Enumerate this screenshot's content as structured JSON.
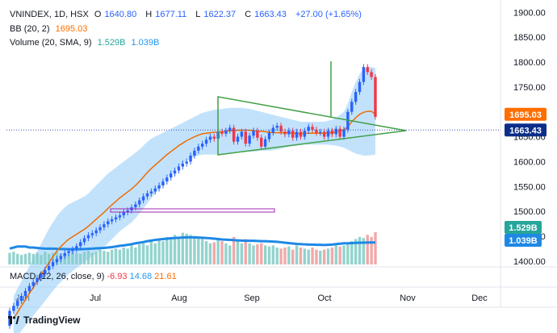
{
  "legend": {
    "symbol": "VNINDEX, 1D, HSX",
    "o_label": "O",
    "o": "1640.80",
    "h_label": "H",
    "h": "1677.11",
    "l_label": "L",
    "l": "1622.37",
    "c_label": "C",
    "c": "1663.43",
    "change": "+27.00 (+1.65%)",
    "bb_label": "BB (20, 2)",
    "bb_value": "1695.03",
    "vol_label": "Volume (20, SMA, 9)",
    "vol_value": "1.529B",
    "vol_sma": "1.039B"
  },
  "macd": {
    "label": "MACD (12, 26, close, 9)",
    "v1": "-6.93",
    "v2": "14.68",
    "v3": "21.61"
  },
  "brand": "TradingView",
  "colors": {
    "up": "#2962ff",
    "down": "#f23645",
    "bb_band": "#90caf9",
    "bb_mid": "#ef6c00",
    "triangle": "#43a047",
    "vol_up": "#80cbc4",
    "vol_down": "#ef9a9a",
    "vol_sma": "#1e88e5"
  },
  "chart_data": {
    "type": "candlestick",
    "x_labels": [
      "Jun",
      "Jul",
      "Aug",
      "Sep",
      "Oct",
      "Nov",
      "Dec"
    ],
    "y_ticks": [
      1900,
      1850,
      1800,
      1750,
      1700,
      1650,
      1600,
      1550,
      1500,
      1450,
      1400
    ],
    "y_tick_labels": [
      "1900.00",
      "1850.00",
      "1800.00",
      "1750.00",
      "1700.00",
      "1650.00",
      "1600.00",
      "1550.00",
      "1500.00",
      "1450.00",
      "1400.00"
    ],
    "ylim": [
      1390,
      1915
    ],
    "price_tags": [
      {
        "label": "1695.03",
        "value": 1695.03,
        "color": "#ff6d00"
      },
      {
        "label": "1663.43",
        "value": 1663.43,
        "color": "#0b2e8a"
      }
    ],
    "volume_tags": [
      {
        "label": "1.529B",
        "color": "#26a69a"
      },
      {
        "label": "1.039B",
        "color": "#1e88e5"
      }
    ],
    "volume_sma_ylim": [
      0,
      1.6
    ],
    "bars_count": 110,
    "start_close": 1270,
    "closes": [
      1300,
      1310,
      1320,
      1330,
      1340,
      1350,
      1358,
      1366,
      1374,
      1382,
      1390,
      1398,
      1404,
      1410,
      1416,
      1420,
      1424,
      1430,
      1438,
      1446,
      1452,
      1456,
      1462,
      1468,
      1474,
      1480,
      1484,
      1488,
      1492,
      1498,
      1502,
      1508,
      1514,
      1522,
      1530,
      1536,
      1540,
      1546,
      1552,
      1560,
      1568,
      1576,
      1582,
      1590,
      1596,
      1600,
      1612,
      1622,
      1630,
      1636,
      1644,
      1650,
      1646,
      1660,
      1656,
      1662,
      1668,
      1640,
      1650,
      1660,
      1636,
      1652,
      1662,
      1648,
      1630,
      1645,
      1658,
      1668,
      1672,
      1660,
      1655,
      1662,
      1648,
      1660,
      1650,
      1662,
      1670,
      1664,
      1658,
      1660,
      1650,
      1662,
      1655,
      1666,
      1650,
      1664,
      1700,
      1720,
      1740,
      1760,
      1790,
      1780,
      1770,
      1690,
      1663.43,
      1663.43,
      1663.43,
      1663.43,
      1663.43,
      1663.43,
      1663.43,
      1663.43,
      1663.43,
      1663.43,
      1663.43,
      1663.43,
      1663.43,
      1663.43,
      1663.43,
      1663.43
    ],
    "bb_upper": [
      1330,
      1345,
      1360,
      1375,
      1390,
      1405,
      1420,
      1435,
      1450,
      1465,
      1478,
      1490,
      1500,
      1508,
      1514,
      1518,
      1522,
      1526,
      1530,
      1536,
      1544,
      1552,
      1560,
      1568,
      1576,
      1582,
      1588,
      1594,
      1600,
      1606,
      1612,
      1618,
      1624,
      1632,
      1640,
      1646,
      1650,
      1654,
      1658,
      1662,
      1666,
      1670,
      1674,
      1678,
      1682,
      1686,
      1690,
      1694,
      1698,
      1700,
      1702,
      1704,
      1705,
      1706,
      1707,
      1708,
      1708,
      1708,
      1708,
      1707,
      1706,
      1704,
      1702,
      1700,
      1698,
      1696,
      1694,
      1692,
      1690,
      1688,
      1686,
      1684,
      1682,
      1680,
      1680,
      1680,
      1680,
      1680,
      1680,
      1680,
      1682,
      1684,
      1688,
      1694,
      1700,
      1716,
      1740,
      1760,
      1776,
      1786,
      1790,
      1790,
      1788
    ],
    "bb_lower": [
      1240,
      1250,
      1260,
      1270,
      1280,
      1290,
      1300,
      1310,
      1320,
      1330,
      1340,
      1350,
      1358,
      1366,
      1374,
      1380,
      1386,
      1392,
      1398,
      1404,
      1410,
      1416,
      1422,
      1428,
      1436,
      1444,
      1452,
      1460,
      1466,
      1472,
      1478,
      1486,
      1496,
      1506,
      1516,
      1526,
      1536,
      1546,
      1556,
      1566,
      1574,
      1582,
      1590,
      1596,
      1602,
      1606,
      1610,
      1612,
      1614,
      1614,
      1614,
      1614,
      1614,
      1614,
      1615,
      1616,
      1617,
      1618,
      1619,
      1620,
      1620,
      1620,
      1621,
      1622,
      1622,
      1622,
      1623,
      1624,
      1626,
      1628,
      1630,
      1631,
      1632,
      1633,
      1634,
      1634,
      1634,
      1634,
      1634,
      1634,
      1634,
      1633,
      1632,
      1630,
      1628,
      1624,
      1620,
      1616,
      1614,
      1612,
      1612,
      1613,
      1614
    ],
    "bb_mid": [
      1285,
      1297,
      1310,
      1322,
      1335,
      1347,
      1360,
      1372,
      1385,
      1397,
      1409,
      1420,
      1429,
      1437,
      1444,
      1449,
      1454,
      1459,
      1464,
      1470,
      1477,
      1484,
      1491,
      1498,
      1506,
      1513,
      1520,
      1527,
      1533,
      1539,
      1545,
      1552,
      1560,
      1569,
      1578,
      1586,
      1593,
      1600,
      1607,
      1614,
      1620,
      1626,
      1632,
      1637,
      1642,
      1646,
      1650,
      1653,
      1656,
      1657,
      1658,
      1659,
      1659,
      1660,
      1661,
      1662,
      1662,
      1663,
      1663,
      1663,
      1663,
      1662,
      1661,
      1661,
      1660,
      1659,
      1658,
      1658,
      1658,
      1658,
      1658,
      1657,
      1657,
      1656,
      1657,
      1657,
      1657,
      1657,
      1657,
      1657,
      1658,
      1658,
      1660,
      1662,
      1664,
      1670,
      1680,
      1688,
      1695,
      1699,
      1701,
      1701,
      1695
    ],
    "volumes": [
      0.55,
      0.6,
      0.5,
      0.45,
      0.5,
      0.55,
      0.5,
      0.55,
      0.45,
      0.6,
      0.5,
      0.55,
      0.6,
      0.5,
      0.55,
      0.5,
      0.6,
      0.55,
      0.5,
      0.6,
      0.65,
      0.55,
      0.6,
      0.7,
      0.65,
      0.6,
      0.7,
      0.75,
      0.7,
      0.8,
      0.75,
      0.9,
      0.8,
      0.95,
      1.0,
      0.9,
      1.1,
      1.0,
      1.2,
      1.1,
      1.3,
      1.2,
      1.4,
      1.3,
      1.5,
      1.45,
      1.4,
      1.35,
      1.3,
      1.2,
      1.1,
      1.0,
      1.05,
      1.2,
      1.1,
      1.0,
      0.9,
      1.3,
      1.1,
      1.0,
      1.2,
      1.0,
      0.9,
      0.95,
      1.0,
      0.9,
      0.85,
      0.9,
      0.8,
      0.75,
      0.8,
      0.85,
      0.7,
      0.9,
      0.8,
      0.75,
      0.7,
      0.8,
      0.7,
      0.65,
      0.7,
      0.75,
      0.8,
      0.9,
      0.85,
      0.9,
      1.0,
      1.1,
      1.2,
      1.3,
      1.25,
      1.4,
      1.3,
      1.529
    ],
    "volume_sma": [
      0.75,
      0.8,
      0.85,
      0.85,
      0.85,
      0.8,
      0.8,
      0.78,
      0.76,
      0.75,
      0.75,
      0.75,
      0.74,
      0.73,
      0.73,
      0.72,
      0.72,
      0.72,
      0.72,
      0.73,
      0.74,
      0.75,
      0.76,
      0.77,
      0.78,
      0.8,
      0.82,
      0.85,
      0.88,
      0.9,
      0.93,
      0.96,
      1.0,
      1.03,
      1.06,
      1.1,
      1.13,
      1.16,
      1.18,
      1.2,
      1.22,
      1.24,
      1.25,
      1.26,
      1.27,
      1.28,
      1.28,
      1.28,
      1.27,
      1.26,
      1.25,
      1.24,
      1.22,
      1.2,
      1.18,
      1.17,
      1.16,
      1.15,
      1.14,
      1.13,
      1.12,
      1.12,
      1.12,
      1.11,
      1.1,
      1.1,
      1.09,
      1.08,
      1.07,
      1.05,
      1.03,
      1.01,
      0.99,
      0.97,
      0.96,
      0.95,
      0.94,
      0.94,
      0.93,
      0.93,
      0.92,
      0.93,
      0.94,
      0.96,
      0.98,
      1.0,
      1.0,
      1.01,
      1.02,
      1.03,
      1.03,
      1.04,
      1.04,
      1.039
    ]
  }
}
